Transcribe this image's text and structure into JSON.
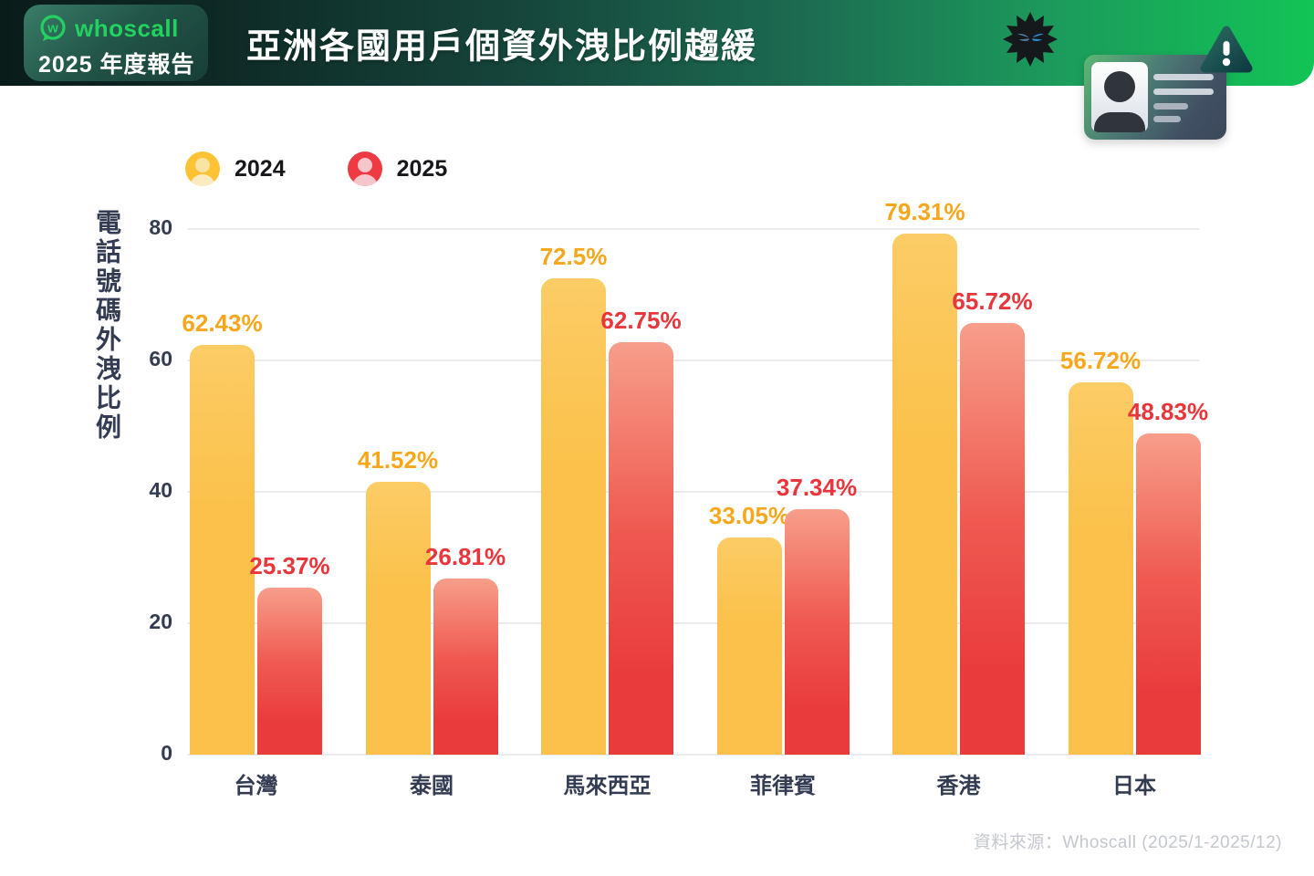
{
  "header": {
    "logo_text": "whoscall",
    "badge_subtitle": "2025 年度報告",
    "title": "亞洲各國用戶個資外洩比例趨緩"
  },
  "icons": {
    "logo": "whoscall-logo",
    "virus": "malware-virus-icon",
    "id_card": "leaked-id-card-icon",
    "warning": "warning-triangle-icon",
    "legend_2024": "person-avatar-yellow-icon",
    "legend_2025": "person-avatar-red-icon"
  },
  "chart_data": {
    "type": "bar",
    "title": "亞洲各國用戶個資外洩比例趨緩",
    "ylabel": "電話號碼外洩比例",
    "unit": "%",
    "categories": [
      "台灣",
      "泰國",
      "馬來西亞",
      "菲律賓",
      "香港",
      "日本"
    ],
    "series": [
      {
        "name": "2024",
        "color": "#FBC14A",
        "label_color": "#F6A71B",
        "values": [
          62.43,
          41.52,
          72.5,
          33.05,
          79.31,
          56.72
        ],
        "labels": [
          "62.43%",
          "41.52%",
          "72.5%",
          "33.05%",
          "79.31%",
          "56.72%"
        ]
      },
      {
        "name": "2025",
        "color": "#E93A3C",
        "color_top": "#F79E8A",
        "label_color": "#E8363C",
        "values": [
          25.37,
          26.81,
          62.75,
          37.34,
          65.72,
          48.83
        ],
        "labels": [
          "25.37%",
          "26.81%",
          "62.75%",
          "37.34%",
          "65.72%",
          "48.83%"
        ]
      }
    ],
    "yticks": [
      0,
      20,
      40,
      60,
      80
    ],
    "ylim": [
      0,
      80
    ],
    "grid": true,
    "legend_position": "top-left"
  },
  "colors": {
    "axis_text": "#333C52",
    "gridline": "#E9EBEF",
    "header_green": "#12C455",
    "header_dark": "#0A1B1A",
    "logo_green": "#23D161",
    "footer_text": "#C3C7CE"
  },
  "footer": {
    "source": "資料來源：Whoscall (2025/1-2025/12)"
  }
}
